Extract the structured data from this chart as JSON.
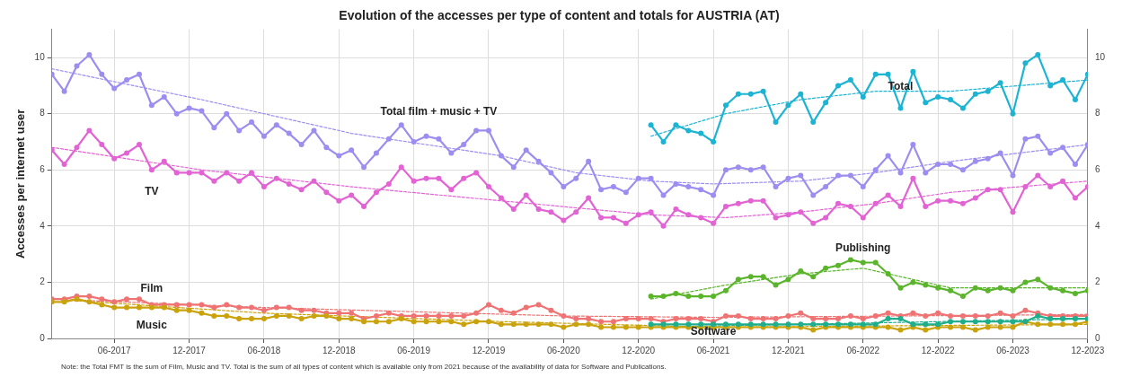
{
  "chart_data": {
    "type": "line",
    "title": "Evolution of the accesses per type of content and totals for AUSTRIA (AT)",
    "ylabel": "Accesses per internet user",
    "x": [
      "2017-01",
      "2017-02",
      "2017-03",
      "2017-04",
      "2017-05",
      "2017-06",
      "2017-07",
      "2017-08",
      "2017-09",
      "2017-10",
      "2017-11",
      "2017-12",
      "2018-01",
      "2018-02",
      "2018-03",
      "2018-04",
      "2018-05",
      "2018-06",
      "2018-07",
      "2018-08",
      "2018-09",
      "2018-10",
      "2018-11",
      "2018-12",
      "2019-01",
      "2019-02",
      "2019-03",
      "2019-04",
      "2019-05",
      "2019-06",
      "2019-07",
      "2019-08",
      "2019-09",
      "2019-10",
      "2019-11",
      "2019-12",
      "2020-01",
      "2020-02",
      "2020-03",
      "2020-04",
      "2020-05",
      "2020-06",
      "2020-07",
      "2020-08",
      "2020-09",
      "2020-10",
      "2020-11",
      "2020-12",
      "2021-01",
      "2021-02",
      "2021-03",
      "2021-04",
      "2021-05",
      "2021-06",
      "2021-07",
      "2021-08",
      "2021-09",
      "2021-10",
      "2021-11",
      "2021-12",
      "2022-01",
      "2022-02",
      "2022-03",
      "2022-04",
      "2022-05",
      "2022-06",
      "2022-07",
      "2022-08",
      "2022-09",
      "2022-10",
      "2022-11",
      "2022-12",
      "2023-01",
      "2023-02",
      "2023-03",
      "2023-04",
      "2023-05",
      "2023-06",
      "2023-07",
      "2023-08",
      "2023-09",
      "2023-10",
      "2023-11",
      "2023-12"
    ],
    "series": [
      {
        "name": "Total film + music + TV",
        "color": "#9d8df1",
        "values": [
          9.4,
          8.8,
          9.7,
          10.1,
          9.4,
          8.9,
          9.2,
          9.4,
          8.3,
          8.6,
          8.0,
          8.2,
          8.1,
          7.5,
          8.0,
          7.4,
          7.7,
          7.2,
          7.6,
          7.3,
          6.9,
          7.4,
          6.8,
          6.5,
          6.7,
          6.1,
          6.6,
          7.1,
          7.6,
          7.0,
          7.2,
          7.1,
          6.6,
          6.9,
          7.4,
          7.4,
          6.5,
          6.1,
          6.7,
          6.3,
          5.9,
          5.4,
          5.7,
          6.3,
          5.3,
          5.4,
          5.2,
          5.7,
          5.7,
          5.1,
          5.5,
          5.4,
          5.3,
          5.1,
          6.0,
          6.1,
          6.0,
          6.1,
          5.4,
          5.7,
          5.8,
          5.1,
          5.4,
          5.8,
          5.8,
          5.4,
          6.0,
          6.5,
          5.9,
          6.9,
          5.9,
          6.2,
          6.2,
          6.0,
          6.3,
          6.4,
          6.6,
          5.8,
          7.1,
          7.2,
          6.6,
          6.8,
          6.2,
          6.9
        ]
      },
      {
        "name": "TV",
        "color": "#e263d4",
        "values": [
          6.7,
          6.2,
          6.8,
          7.4,
          6.9,
          6.4,
          6.6,
          6.9,
          6.0,
          6.3,
          5.9,
          5.9,
          5.9,
          5.6,
          5.9,
          5.6,
          5.9,
          5.4,
          5.7,
          5.5,
          5.3,
          5.6,
          5.2,
          4.9,
          5.1,
          4.7,
          5.2,
          5.5,
          6.1,
          5.6,
          5.7,
          5.7,
          5.3,
          5.7,
          5.9,
          5.4,
          5.0,
          4.6,
          5.1,
          4.6,
          4.5,
          4.2,
          4.5,
          5.0,
          4.3,
          4.3,
          4.1,
          4.4,
          4.5,
          4.0,
          4.6,
          4.4,
          4.3,
          4.1,
          4.7,
          4.8,
          4.9,
          4.9,
          4.3,
          4.4,
          4.5,
          4.1,
          4.3,
          4.8,
          4.7,
          4.3,
          4.8,
          5.1,
          4.7,
          5.7,
          4.7,
          4.9,
          4.9,
          4.8,
          5.0,
          5.3,
          5.3,
          4.5,
          5.4,
          5.8,
          5.4,
          5.6,
          5.0,
          5.4
        ]
      },
      {
        "name": "Film",
        "color": "#f07373",
        "values": [
          1.4,
          1.4,
          1.5,
          1.5,
          1.4,
          1.3,
          1.4,
          1.4,
          1.2,
          1.2,
          1.2,
          1.2,
          1.2,
          1.1,
          1.2,
          1.1,
          1.1,
          1.0,
          1.1,
          1.1,
          1.0,
          1.0,
          0.9,
          0.9,
          0.9,
          0.7,
          0.8,
          0.9,
          0.8,
          0.8,
          0.8,
          0.8,
          0.8,
          0.8,
          0.9,
          1.2,
          1.0,
          0.9,
          1.1,
          1.2,
          1.0,
          0.8,
          0.7,
          0.7,
          0.6,
          0.6,
          0.7,
          0.7,
          0.7,
          0.6,
          0.7,
          0.7,
          0.7,
          0.6,
          0.8,
          0.8,
          0.7,
          0.7,
          0.7,
          0.8,
          0.9,
          0.7,
          0.7,
          0.7,
          0.8,
          0.7,
          0.8,
          0.9,
          0.8,
          0.9,
          0.8,
          0.9,
          0.8,
          0.8,
          0.8,
          0.8,
          0.9,
          0.8,
          1.0,
          0.9,
          0.8,
          0.8,
          0.8,
          0.8
        ]
      },
      {
        "name": "Music",
        "color": "#c9a20c",
        "values": [
          1.3,
          1.3,
          1.4,
          1.3,
          1.2,
          1.1,
          1.1,
          1.1,
          1.1,
          1.1,
          1.0,
          1.0,
          0.9,
          0.8,
          0.8,
          0.7,
          0.7,
          0.7,
          0.8,
          0.8,
          0.7,
          0.8,
          0.8,
          0.7,
          0.7,
          0.6,
          0.6,
          0.6,
          0.7,
          0.6,
          0.6,
          0.6,
          0.6,
          0.5,
          0.6,
          0.6,
          0.5,
          0.5,
          0.5,
          0.5,
          0.5,
          0.4,
          0.5,
          0.5,
          0.4,
          0.4,
          0.4,
          0.4,
          0.4,
          0.4,
          0.4,
          0.4,
          0.4,
          0.4,
          0.4,
          0.4,
          0.4,
          0.4,
          0.4,
          0.4,
          0.4,
          0.3,
          0.4,
          0.4,
          0.4,
          0.4,
          0.4,
          0.4,
          0.3,
          0.4,
          0.3,
          0.4,
          0.4,
          0.4,
          0.3,
          0.4,
          0.4,
          0.4,
          0.6,
          0.5,
          0.5,
          0.5,
          0.5,
          0.6
        ]
      },
      {
        "name": "Total",
        "color": "#1db4d4",
        "values": [
          null,
          null,
          null,
          null,
          null,
          null,
          null,
          null,
          null,
          null,
          null,
          null,
          null,
          null,
          null,
          null,
          null,
          null,
          null,
          null,
          null,
          null,
          null,
          null,
          null,
          null,
          null,
          null,
          null,
          null,
          null,
          null,
          null,
          null,
          null,
          null,
          null,
          null,
          null,
          null,
          null,
          null,
          null,
          null,
          null,
          null,
          null,
          null,
          7.6,
          7.0,
          7.6,
          7.4,
          7.3,
          7.0,
          8.3,
          8.7,
          8.7,
          8.8,
          7.7,
          8.3,
          8.7,
          7.7,
          8.4,
          9.0,
          9.2,
          8.6,
          9.4,
          9.4,
          8.2,
          9.5,
          8.4,
          8.6,
          8.5,
          8.2,
          8.7,
          8.8,
          9.1,
          8.0,
          9.8,
          10.1,
          9.0,
          9.2,
          8.5,
          9.4
        ]
      },
      {
        "name": "Publishing",
        "color": "#5ab52c",
        "values": [
          null,
          null,
          null,
          null,
          null,
          null,
          null,
          null,
          null,
          null,
          null,
          null,
          null,
          null,
          null,
          null,
          null,
          null,
          null,
          null,
          null,
          null,
          null,
          null,
          null,
          null,
          null,
          null,
          null,
          null,
          null,
          null,
          null,
          null,
          null,
          null,
          null,
          null,
          null,
          null,
          null,
          null,
          null,
          null,
          null,
          null,
          null,
          null,
          1.5,
          1.5,
          1.6,
          1.5,
          1.5,
          1.5,
          1.7,
          2.1,
          2.2,
          2.2,
          1.9,
          2.1,
          2.4,
          2.2,
          2.5,
          2.6,
          2.8,
          2.7,
          2.7,
          2.3,
          1.8,
          2.0,
          1.9,
          1.8,
          1.7,
          1.5,
          1.8,
          1.7,
          1.8,
          1.7,
          2.0,
          2.1,
          1.8,
          1.7,
          1.6,
          1.7
        ]
      },
      {
        "name": "Software",
        "color": "#1fae8c",
        "values": [
          null,
          null,
          null,
          null,
          null,
          null,
          null,
          null,
          null,
          null,
          null,
          null,
          null,
          null,
          null,
          null,
          null,
          null,
          null,
          null,
          null,
          null,
          null,
          null,
          null,
          null,
          null,
          null,
          null,
          null,
          null,
          null,
          null,
          null,
          null,
          null,
          null,
          null,
          null,
          null,
          null,
          null,
          null,
          null,
          null,
          null,
          null,
          null,
          0.5,
          0.5,
          0.5,
          0.5,
          0.5,
          0.5,
          0.5,
          0.5,
          0.5,
          0.5,
          0.5,
          0.5,
          0.5,
          0.5,
          0.5,
          0.5,
          0.5,
          0.5,
          0.5,
          0.7,
          0.7,
          0.5,
          0.5,
          0.5,
          0.6,
          0.6,
          0.6,
          0.6,
          0.6,
          0.6,
          0.6,
          0.8,
          0.7,
          0.7,
          0.7,
          0.7
        ]
      },
      {
        "color": "#9d8df1",
        "line_style": "dashed",
        "marker": "none",
        "x": [
          "2017-01",
          "2018-01",
          "2019-01",
          "2019-07",
          "2020-01",
          "2020-07",
          "2021-01",
          "2021-06",
          "2022-01",
          "2022-07",
          "2023-01",
          "2023-12"
        ],
        "values": [
          9.6,
          8.5,
          7.3,
          6.9,
          6.5,
          5.9,
          5.6,
          5.5,
          5.6,
          5.9,
          6.3,
          6.9
        ]
      },
      {
        "color": "#e263d4",
        "line_style": "dashed",
        "marker": "none",
        "x": [
          "2017-01",
          "2018-01",
          "2019-01",
          "2020-01",
          "2021-01",
          "2021-07",
          "2022-01",
          "2022-07",
          "2023-01",
          "2023-12"
        ],
        "values": [
          6.8,
          6.0,
          5.4,
          4.9,
          4.4,
          4.3,
          4.5,
          4.8,
          5.2,
          5.6
        ]
      },
      {
        "color": "#f07373",
        "line_style": "dashed",
        "marker": "none",
        "x": [
          "2017-01",
          "2018-06",
          "2019-06",
          "2020-06",
          "2021-06",
          "2023-12"
        ],
        "values": [
          1.4,
          1.1,
          0.95,
          0.8,
          0.75,
          0.85
        ]
      },
      {
        "color": "#c9a20c",
        "line_style": "dashed",
        "marker": "none",
        "x": [
          "2017-01",
          "2018-06",
          "2020-01",
          "2021-06",
          "2023-12"
        ],
        "values": [
          1.4,
          0.9,
          0.6,
          0.4,
          0.5
        ]
      },
      {
        "color": "#1db4d4",
        "line_style": "dashed",
        "marker": "none",
        "x": [
          "2021-01",
          "2021-07",
          "2022-01",
          "2022-07",
          "2023-01",
          "2023-12"
        ],
        "values": [
          7.2,
          8.0,
          8.5,
          8.8,
          8.8,
          9.2
        ]
      },
      {
        "color": "#5ab52c",
        "line_style": "dashed",
        "marker": "none",
        "x": [
          "2021-01",
          "2021-07",
          "2022-01",
          "2022-06",
          "2022-10",
          "2023-01",
          "2023-12"
        ],
        "values": [
          1.4,
          1.9,
          2.3,
          2.5,
          2.1,
          1.8,
          1.8
        ]
      },
      {
        "color": "#1fae8c",
        "line_style": "dashed",
        "marker": "none",
        "x": [
          "2021-01",
          "2023-12"
        ],
        "values": [
          0.4,
          0.7
        ]
      }
    ],
    "xlim": [
      "2017-01",
      "2023-12"
    ],
    "xticks": [
      {
        "value": "2017-06",
        "label": "06-2017"
      },
      {
        "value": "2017-12",
        "label": "12-2017"
      },
      {
        "value": "2018-06",
        "label": "06-2018"
      },
      {
        "value": "2018-12",
        "label": "12-2018"
      },
      {
        "value": "2019-06",
        "label": "06-2019"
      },
      {
        "value": "2019-12",
        "label": "12-2019"
      },
      {
        "value": "2020-06",
        "label": "06-2020"
      },
      {
        "value": "2020-12",
        "label": "12-2020"
      },
      {
        "value": "2021-06",
        "label": "06-2021"
      },
      {
        "value": "2021-12",
        "label": "12-2021"
      },
      {
        "value": "2022-06",
        "label": "06-2022"
      },
      {
        "value": "2022-12",
        "label": "12-2022"
      },
      {
        "value": "2023-06",
        "label": "06-2023"
      },
      {
        "value": "2023-12",
        "label": "12-2023"
      }
    ],
    "ylim": [
      0,
      11
    ],
    "yticks": [
      0,
      2,
      4,
      6,
      8,
      10
    ],
    "y2lim": [
      0,
      11
    ],
    "y2ticks": [
      0,
      2,
      4,
      6,
      8,
      10
    ],
    "grid": true,
    "legend": false,
    "marker": "circle",
    "line_style": "solid",
    "annotations": [
      "Note: the Total FMT is the sum of Film, Music and TV. Total is the sum of all types of content which is available only from 2021 because of the availability of data for Software and Publications."
    ]
  }
}
